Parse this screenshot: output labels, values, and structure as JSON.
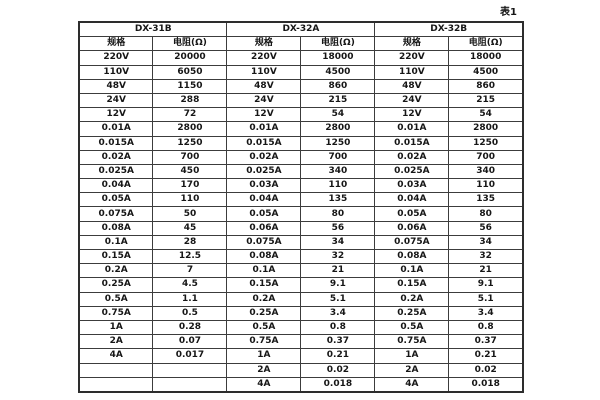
{
  "page": {
    "caption": "表1"
  },
  "colors": {
    "background": "#ffffff",
    "text": "#161616",
    "border": "#3c3c3c"
  },
  "table": {
    "groups": [
      {
        "label": "DX-31B"
      },
      {
        "label": "DX-32A"
      },
      {
        "label": "DX-32B"
      }
    ],
    "subheaders": {
      "spec": "规格",
      "resistance": "电阻(Ω)"
    },
    "rows": [
      [
        "220V",
        "20000",
        "220V",
        "18000",
        "220V",
        "18000"
      ],
      [
        "110V",
        "6050",
        "110V",
        "4500",
        "110V",
        "4500"
      ],
      [
        "48V",
        "1150",
        "48V",
        "860",
        "48V",
        "860"
      ],
      [
        "24V",
        "288",
        "24V",
        "215",
        "24V",
        "215"
      ],
      [
        "12V",
        "72",
        "12V",
        "54",
        "12V",
        "54"
      ],
      [
        "0.01A",
        "2800",
        "0.01A",
        "2800",
        "0.01A",
        "2800"
      ],
      [
        "0.015A",
        "1250",
        "0.015A",
        "1250",
        "0.015A",
        "1250"
      ],
      [
        "0.02A",
        "700",
        "0.02A",
        "700",
        "0.02A",
        "700"
      ],
      [
        "0.025A",
        "450",
        "0.025A",
        "340",
        "0.025A",
        "340"
      ],
      [
        "0.04A",
        "170",
        "0.03A",
        "110",
        "0.03A",
        "110"
      ],
      [
        "0.05A",
        "110",
        "0.04A",
        "135",
        "0.04A",
        "135"
      ],
      [
        "0.075A",
        "50",
        "0.05A",
        "80",
        "0.05A",
        "80"
      ],
      [
        "0.08A",
        "45",
        "0.06A",
        "56",
        "0.06A",
        "56"
      ],
      [
        "0.1A",
        "28",
        "0.075A",
        "34",
        "0.075A",
        "34"
      ],
      [
        "0.15A",
        "12.5",
        "0.08A",
        "32",
        "0.08A",
        "32"
      ],
      [
        "0.2A",
        "7",
        "0.1A",
        "21",
        "0.1A",
        "21"
      ],
      [
        "0.25A",
        "4.5",
        "0.15A",
        "9.1",
        "0.15A",
        "9.1"
      ],
      [
        "0.5A",
        "1.1",
        "0.2A",
        "5.1",
        "0.2A",
        "5.1"
      ],
      [
        "0.75A",
        "0.5",
        "0.25A",
        "3.4",
        "0.25A",
        "3.4"
      ],
      [
        "1A",
        "0.28",
        "0.5A",
        "0.8",
        "0.5A",
        "0.8"
      ],
      [
        "2A",
        "0.07",
        "0.75A",
        "0.37",
        "0.75A",
        "0.37"
      ],
      [
        "4A",
        "0.017",
        "1A",
        "0.21",
        "1A",
        "0.21"
      ],
      [
        "",
        "",
        "2A",
        "0.02",
        "2A",
        "0.02"
      ],
      [
        "",
        "",
        "4A",
        "0.018",
        "4A",
        "0.018"
      ]
    ]
  }
}
